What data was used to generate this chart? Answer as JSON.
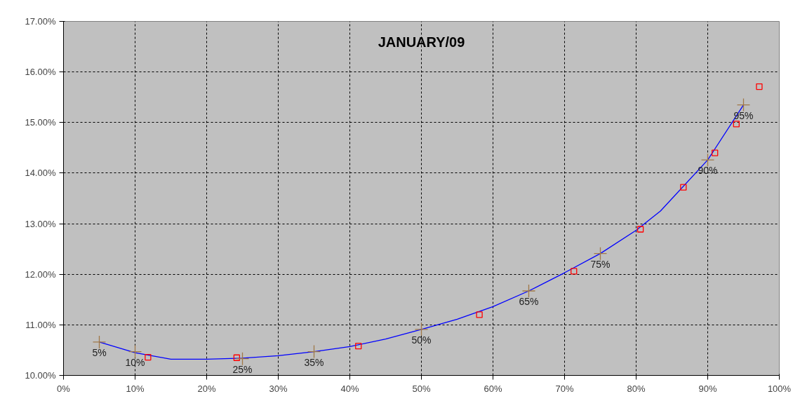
{
  "chart_data": {
    "type": "scatter",
    "title": "JANUARY/09",
    "xlim": [
      0,
      100
    ],
    "ylim": [
      10,
      17
    ],
    "xticks": [
      {
        "value": 0,
        "label": "0%"
      },
      {
        "value": 10,
        "label": "10%"
      },
      {
        "value": 20,
        "label": "20%"
      },
      {
        "value": 30,
        "label": "30%"
      },
      {
        "value": 40,
        "label": "40%"
      },
      {
        "value": 50,
        "label": "50%"
      },
      {
        "value": 60,
        "label": "60%"
      },
      {
        "value": 70,
        "label": "70%"
      },
      {
        "value": 80,
        "label": "80%"
      },
      {
        "value": 90,
        "label": "90%"
      },
      {
        "value": 100,
        "label": "100%"
      }
    ],
    "yticks": [
      {
        "value": 10,
        "label": "10.00%"
      },
      {
        "value": 11,
        "label": "11.00%"
      },
      {
        "value": 12,
        "label": "12.00%"
      },
      {
        "value": 13,
        "label": "13.00%"
      },
      {
        "value": 14,
        "label": "14.00%"
      },
      {
        "value": 15,
        "label": "15.00%"
      },
      {
        "value": 16,
        "label": "16.00%"
      },
      {
        "value": 17,
        "label": "17.00%"
      }
    ],
    "grid": true,
    "series": [
      {
        "type": "line",
        "color": "#0000ff",
        "line_style": "solid",
        "marker": "none",
        "x": [
          5,
          10,
          15,
          20,
          25,
          30,
          35,
          40,
          45,
          50,
          55,
          60,
          65,
          70,
          75,
          80,
          83.4,
          90,
          95
        ],
        "values": [
          10.66,
          10.45,
          10.32,
          10.32,
          10.34,
          10.39,
          10.47,
          10.57,
          10.72,
          10.91,
          11.11,
          11.36,
          11.67,
          12.03,
          12.41,
          12.87,
          13.25,
          14.26,
          15.35
        ]
      },
      {
        "color": "#ff0000",
        "marker": "square",
        "x": [
          11.8,
          24.2,
          41.2,
          58.1,
          71.3,
          80.6,
          86.6,
          91.0,
          94.0,
          97.2
        ],
        "values": [
          10.36,
          10.35,
          10.58,
          11.2,
          12.06,
          12.89,
          13.72,
          14.4,
          14.97,
          15.71
        ]
      },
      {
        "color": "#a07848",
        "marker": "cross",
        "x": [
          5,
          10,
          25,
          35,
          50,
          65,
          75,
          90,
          95
        ],
        "values": [
          10.66,
          10.47,
          10.33,
          10.47,
          10.91,
          11.67,
          12.41,
          14.26,
          15.35
        ]
      }
    ],
    "annotations": [
      {
        "text": "5%",
        "x": 5,
        "y": 10.66
      },
      {
        "text": "10%",
        "x": 10,
        "y": 10.47
      },
      {
        "text": "25%",
        "x": 25,
        "y": 10.33
      },
      {
        "text": "35%",
        "x": 35,
        "y": 10.47
      },
      {
        "text": "50%",
        "x": 50,
        "y": 10.91
      },
      {
        "text": "65%",
        "x": 65,
        "y": 11.67
      },
      {
        "text": "75%",
        "x": 75,
        "y": 12.41
      },
      {
        "text": "90%",
        "x": 90,
        "y": 14.26
      },
      {
        "text": "95%",
        "x": 95,
        "y": 15.35
      }
    ]
  }
}
